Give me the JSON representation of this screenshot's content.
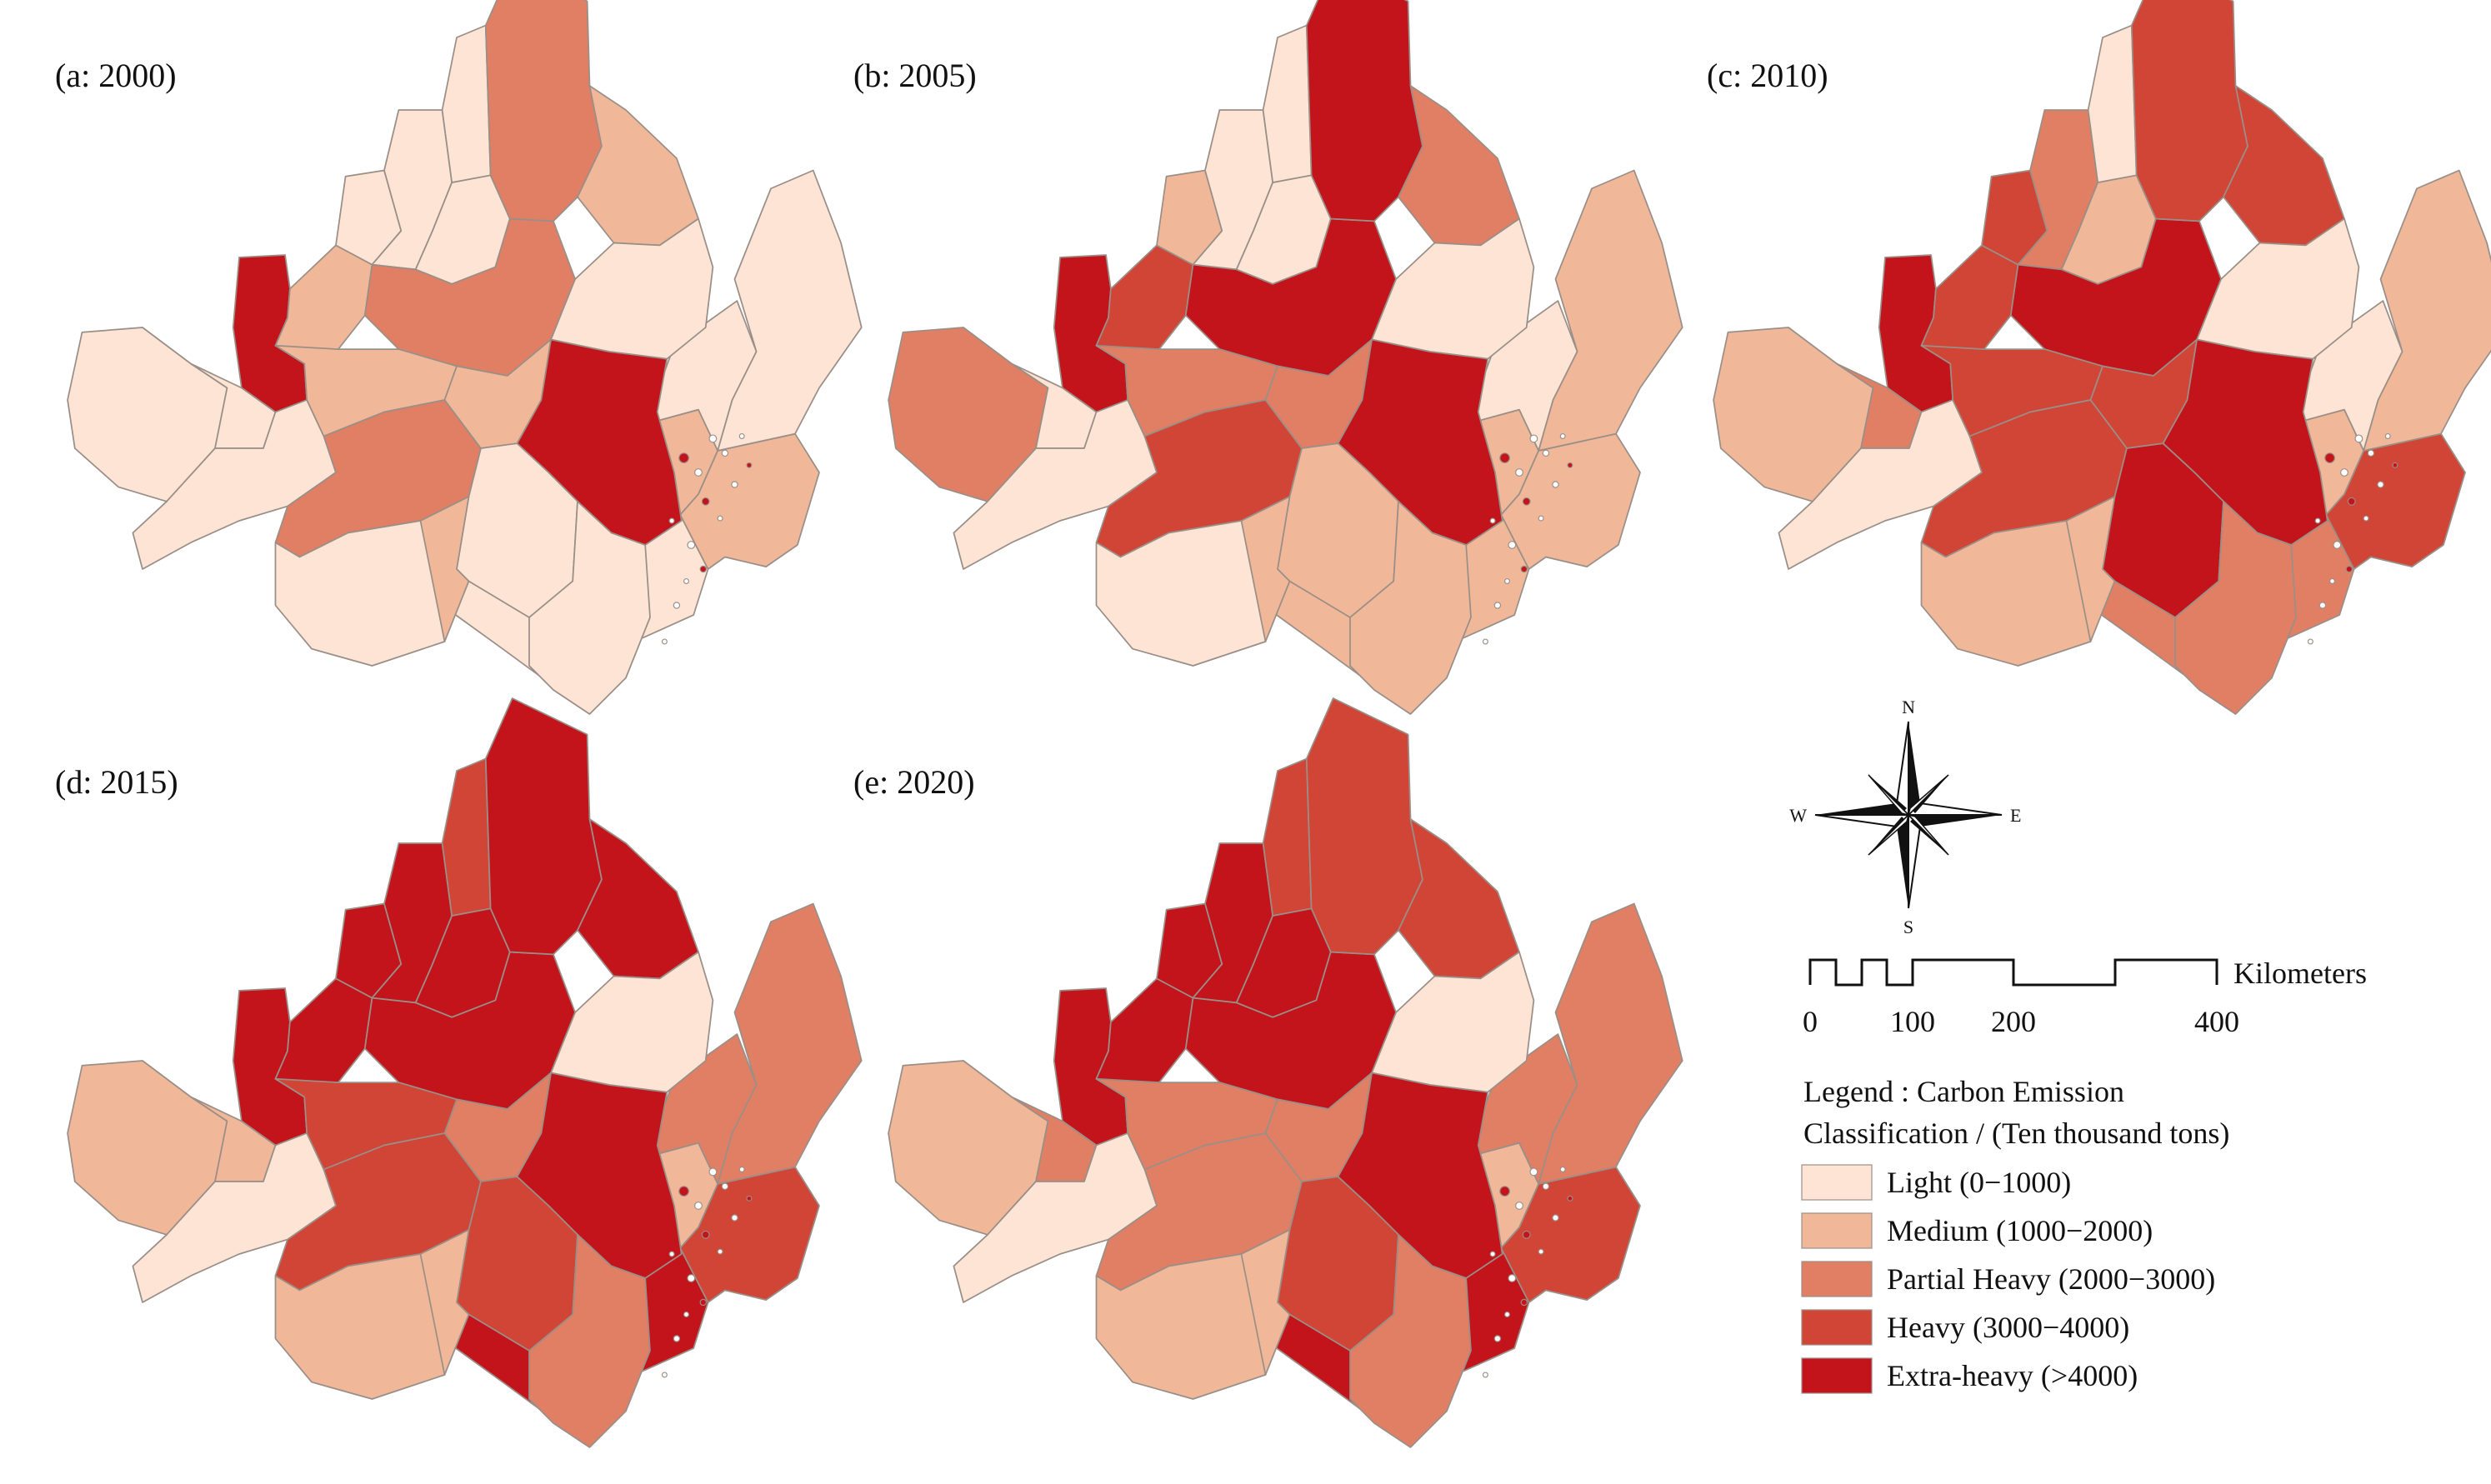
{
  "panels": [
    {
      "id": "a",
      "label": "(a: 2000)",
      "classes": [
        0,
        1,
        1,
        1,
        0,
        0,
        4,
        1,
        0,
        0,
        0,
        0,
        2,
        2,
        1,
        0,
        0,
        0,
        0,
        1,
        2,
        1,
        0,
        4,
        0,
        1,
        0
      ]
    },
    {
      "id": "b",
      "label": "(b: 2005)",
      "classes": [
        1,
        0,
        1,
        1,
        0,
        1,
        4,
        3,
        1,
        0,
        0,
        0,
        4,
        4,
        2,
        0,
        2,
        0,
        0,
        2,
        3,
        2,
        0,
        4,
        1,
        1,
        1
      ]
    },
    {
      "id": "c",
      "label": "(c: 2010)",
      "classes": [
        2,
        1,
        1,
        3,
        0,
        1,
        4,
        3,
        3,
        2,
        1,
        0,
        4,
        3,
        3,
        0,
        1,
        2,
        0,
        3,
        3,
        3,
        1,
        4,
        4,
        1,
        2
      ]
    },
    {
      "id": "d",
      "label": "(d: 2015)",
      "classes": [
        4,
        2,
        1,
        3,
        2,
        2,
        4,
        4,
        4,
        4,
        4,
        3,
        4,
        4,
        4,
        0,
        1,
        1,
        0,
        3,
        3,
        2,
        1,
        4,
        3,
        1,
        2
      ]
    },
    {
      "id": "e",
      "label": "(e: 2020)",
      "classes": [
        4,
        2,
        1,
        3,
        2,
        2,
        4,
        4,
        4,
        4,
        4,
        3,
        4,
        3,
        3,
        0,
        1,
        2,
        0,
        2,
        2,
        2,
        1,
        4,
        3,
        1,
        2
      ]
    }
  ],
  "legend": {
    "title_line1": "Legend : Carbon Emission",
    "title_line2": "Classification / (Ten thousand tons)",
    "items": [
      {
        "label": "Light (0−1000)",
        "color": "#fde4d4"
      },
      {
        "label": "Medium (1000−2000)",
        "color": "#f0b898"
      },
      {
        "label": "Partial Heavy (2000−3000)",
        "color": "#e07f63"
      },
      {
        "label": "Heavy (3000−4000)",
        "color": "#d04535"
      },
      {
        "label": "Extra-heavy (>4000)",
        "color": "#c2141a"
      }
    ]
  },
  "compass": {
    "n": "N",
    "s": "S",
    "e": "E",
    "w": "W"
  },
  "scale_bar": {
    "unit": "Kilometers",
    "ticks": [
      "0",
      "100",
      "200",
      "400"
    ]
  }
}
